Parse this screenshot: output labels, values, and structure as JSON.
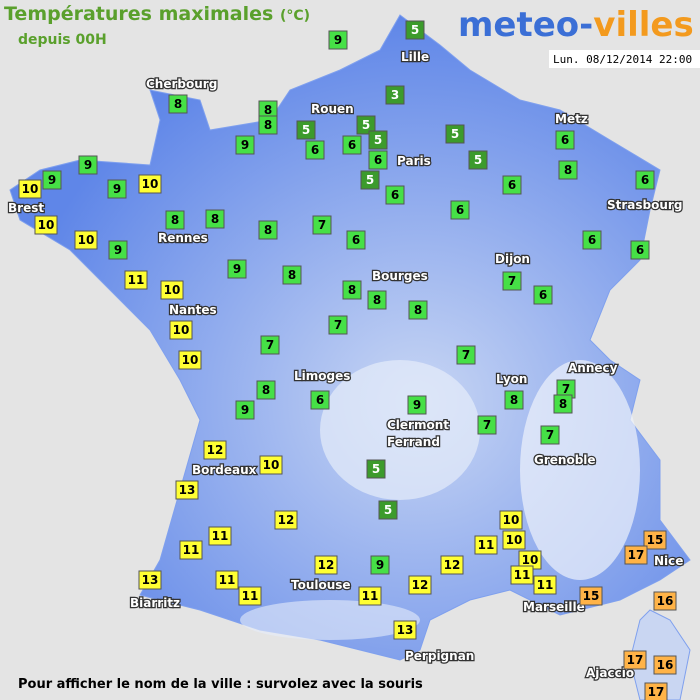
{
  "header": {
    "title": "Températures maximales",
    "unit": "(°C)",
    "subtitle": "depuis 00H",
    "logo": [
      "meteo-",
      "villes"
    ],
    "timestamp": "Lun. 08/12/2014 22:00"
  },
  "cities": [
    "Cherbourg",
    "Lille",
    "Rouen",
    "Metz",
    "Paris",
    "Brest",
    "Strasbourg",
    "Rennes",
    "Dijon",
    "Bourges",
    "Nantes",
    "Annecy",
    "Lyon",
    "Limoges",
    "Clermont",
    "Ferrand",
    "Grenoble",
    "Bordeaux",
    "Nice",
    "Toulouse",
    "Biarritz",
    "Marseille",
    "Perpignan",
    "Ajaccio"
  ],
  "temperatures": [
    5,
    9,
    3,
    8,
    8,
    8,
    5,
    5,
    5,
    5,
    5,
    6,
    9,
    9,
    9,
    10,
    10,
    9,
    6,
    6,
    6,
    5,
    8,
    6,
    6,
    6,
    10,
    8,
    8,
    8,
    7,
    6,
    10,
    9,
    6,
    6,
    6,
    9,
    8,
    11,
    10,
    8,
    8,
    7,
    6,
    8,
    7,
    10,
    7,
    10,
    7,
    8,
    7,
    6,
    9,
    8,
    8,
    9,
    7,
    7,
    12,
    10,
    13,
    5,
    5,
    12,
    10,
    11,
    10,
    11,
    11,
    15,
    17,
    10,
    12,
    9,
    12,
    13,
    11,
    11,
    12,
    11,
    11,
    11,
    15,
    16,
    13,
    17,
    16,
    17
  ],
  "footer": "Pour afficher le nom de la ville : survolez avec la souris"
}
